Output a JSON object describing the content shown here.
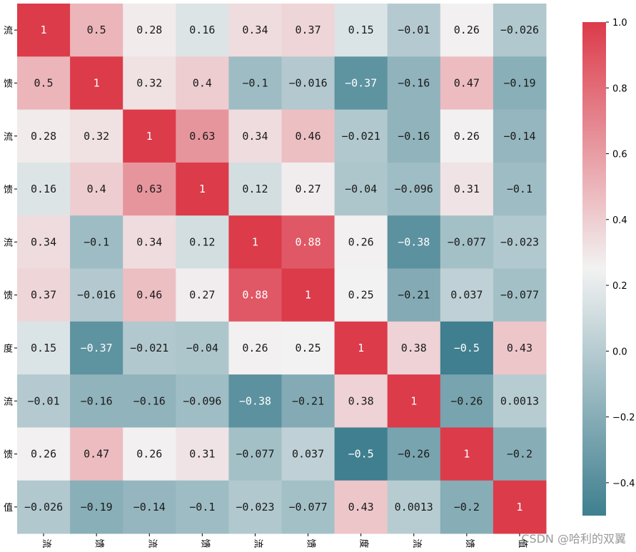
{
  "chart_data": {
    "type": "heatmap",
    "row_labels": [
      "流",
      "馈",
      "流",
      "馈",
      "流",
      "馈",
      "度",
      "流",
      "馈",
      "值"
    ],
    "col_labels": [
      "流",
      "馈",
      "流",
      "馈",
      "流",
      "馈",
      "度",
      "流",
      "馈",
      "值"
    ],
    "values": [
      [
        1,
        0.5,
        0.28,
        0.16,
        0.34,
        0.37,
        0.15,
        -0.01,
        0.26,
        -0.026
      ],
      [
        0.5,
        1,
        0.32,
        0.4,
        -0.1,
        -0.016,
        -0.37,
        -0.16,
        0.47,
        -0.19
      ],
      [
        0.28,
        0.32,
        1,
        0.63,
        0.34,
        0.46,
        -0.021,
        -0.16,
        0.26,
        -0.14
      ],
      [
        0.16,
        0.4,
        0.63,
        1,
        0.12,
        0.27,
        -0.04,
        -0.096,
        0.31,
        -0.1
      ],
      [
        0.34,
        -0.1,
        0.34,
        0.12,
        1,
        0.88,
        0.26,
        -0.38,
        -0.077,
        -0.023
      ],
      [
        0.37,
        -0.016,
        0.46,
        0.27,
        0.88,
        1,
        0.25,
        -0.21,
        0.037,
        -0.077
      ],
      [
        0.15,
        -0.37,
        -0.021,
        -0.04,
        0.26,
        0.25,
        1,
        0.38,
        -0.5,
        0.43
      ],
      [
        -0.01,
        -0.16,
        -0.16,
        -0.096,
        -0.38,
        -0.21,
        0.38,
        1,
        -0.26,
        0.0013
      ],
      [
        0.26,
        0.47,
        0.26,
        0.31,
        -0.077,
        0.037,
        -0.5,
        -0.26,
        1,
        -0.2
      ],
      [
        -0.026,
        -0.19,
        -0.14,
        -0.1,
        -0.023,
        -0.077,
        0.43,
        0.0013,
        -0.2,
        1
      ]
    ],
    "colorbar": {
      "vmin": -0.5,
      "vmax": 1.0,
      "center": 0.25,
      "ticks": [
        1.0,
        0.8,
        0.6,
        0.4,
        0.2,
        0.0,
        -0.2,
        -0.4
      ],
      "tick_labels": [
        "1.0",
        "0.8",
        "0.6",
        "0.4",
        "0.2",
        "0.0",
        "−0.2",
        "−0.4"
      ]
    },
    "colors": {
      "low": "#3f7f8f",
      "mid": "#f2f2f2",
      "high": "#dc3b4a"
    },
    "annot": true
  },
  "watermark": "CSDN @哈利的双翼"
}
